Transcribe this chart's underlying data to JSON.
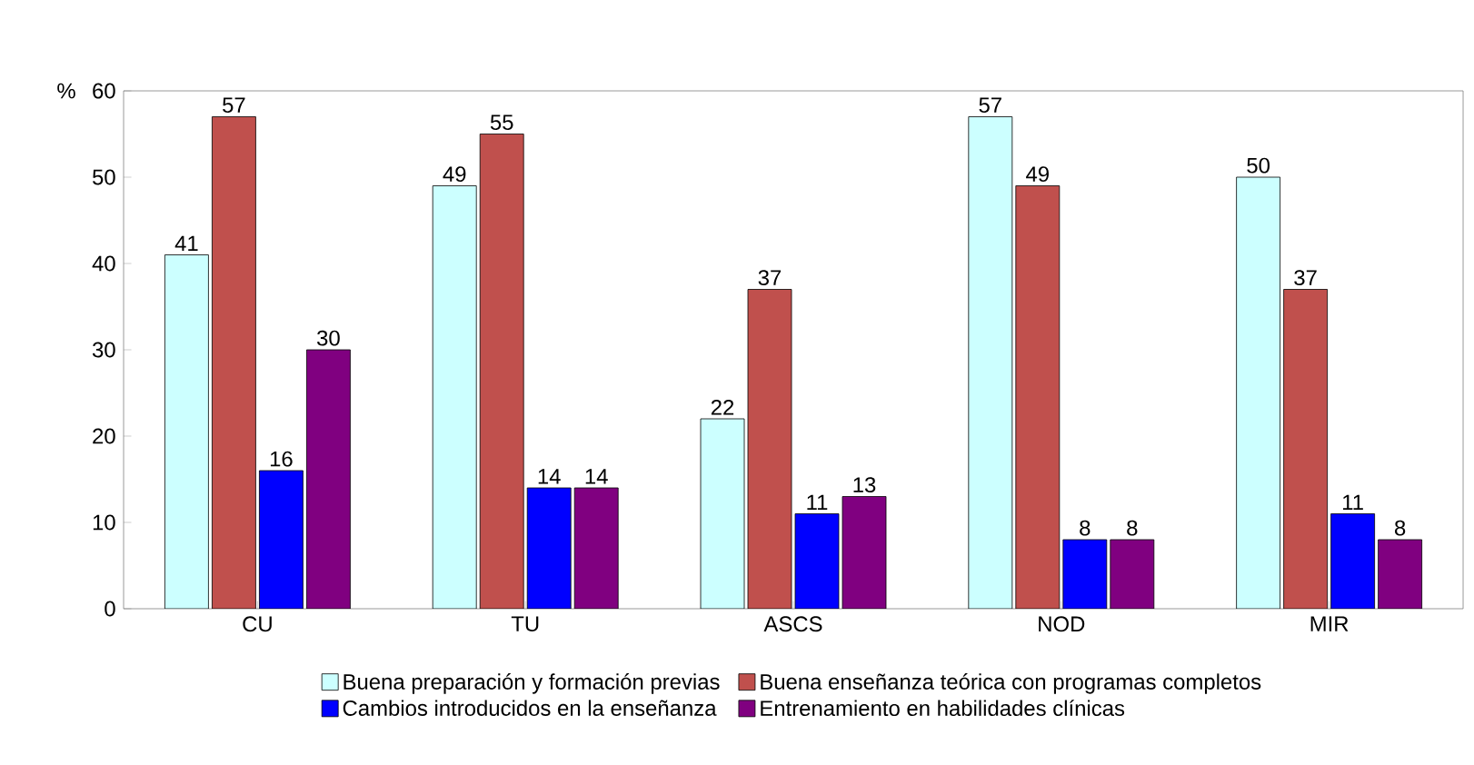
{
  "chart_data": {
    "type": "bar",
    "ylabel": "%",
    "categories": [
      "CU",
      "TU",
      "ASCS",
      "NOD",
      "MIR"
    ],
    "series": [
      {
        "name": "Buena preparación y formación previas",
        "color": "#ccffff",
        "values": [
          41,
          49,
          22,
          57,
          50
        ]
      },
      {
        "name": "Buena enseñanza teórica con programas completos",
        "color": "#c0504d",
        "values": [
          57,
          55,
          37,
          49,
          37
        ]
      },
      {
        "name": "Cambios introducidos en la enseñanza",
        "color": "#0000ff",
        "values": [
          16,
          14,
          11,
          8,
          11
        ]
      },
      {
        "name": "Entrenamiento en habilidades clínicas",
        "color": "#800080",
        "values": [
          30,
          14,
          13,
          8,
          8
        ]
      }
    ],
    "ylim": [
      0,
      60
    ],
    "yticks": [
      0,
      10,
      20,
      30,
      40,
      50,
      60
    ],
    "data_labels": true,
    "legend": "bottom",
    "grid": false
  }
}
